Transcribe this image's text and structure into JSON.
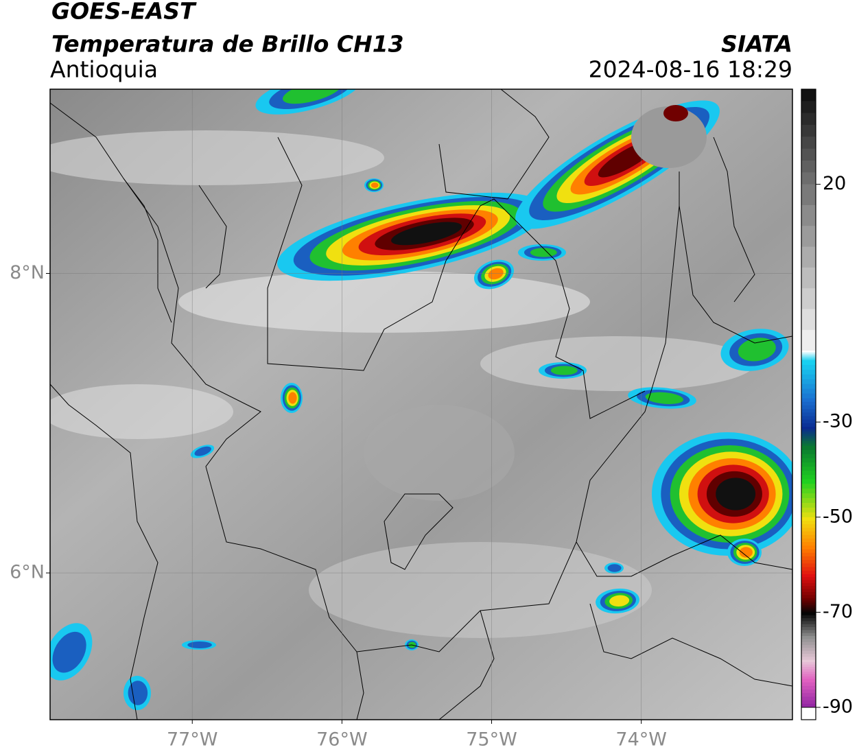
{
  "map": {
    "title": "GOES-EAST",
    "subtitle": "Temperatura de Brillo CH13",
    "region": "Antioquia",
    "source": "SIATA",
    "datetime": "2024-08-16 18:29",
    "xlim": [
      -77.95,
      -72.99
    ],
    "ylim": [
      5.02,
      9.23
    ],
    "xticks": [
      {
        "value": -77,
        "label": "77°W"
      },
      {
        "value": -76,
        "label": "76°W"
      },
      {
        "value": -75,
        "label": "75°W"
      },
      {
        "value": -74,
        "label": "74°W"
      }
    ],
    "yticks": [
      {
        "value": 8,
        "label": "8°N"
      },
      {
        "value": 6,
        "label": "6°N"
      }
    ],
    "grid": true,
    "colorbar": {
      "lim": [
        -90,
        40
      ],
      "ticks": [
        20,
        -30,
        -50,
        -70,
        -90
      ],
      "colormap": [
        [
          40,
          "#111111"
        ],
        [
          20,
          "#7a7a7a"
        ],
        [
          -15,
          "#ffffff"
        ],
        [
          -17,
          "#19d0f0"
        ],
        [
          -25,
          "#1a6fd0"
        ],
        [
          -31,
          "#0a2a90"
        ],
        [
          -35,
          "#0a7a30"
        ],
        [
          -42,
          "#20d020"
        ],
        [
          -50,
          "#f0e010"
        ],
        [
          -56,
          "#ff8000"
        ],
        [
          -62,
          "#e01010"
        ],
        [
          -67,
          "#700000"
        ],
        [
          -70,
          "#050505"
        ],
        [
          -75,
          "#909090"
        ],
        [
          -80,
          "#e8c8d8"
        ],
        [
          -84,
          "#e060c0"
        ],
        [
          -90,
          "#8a20a0"
        ]
      ]
    }
  }
}
